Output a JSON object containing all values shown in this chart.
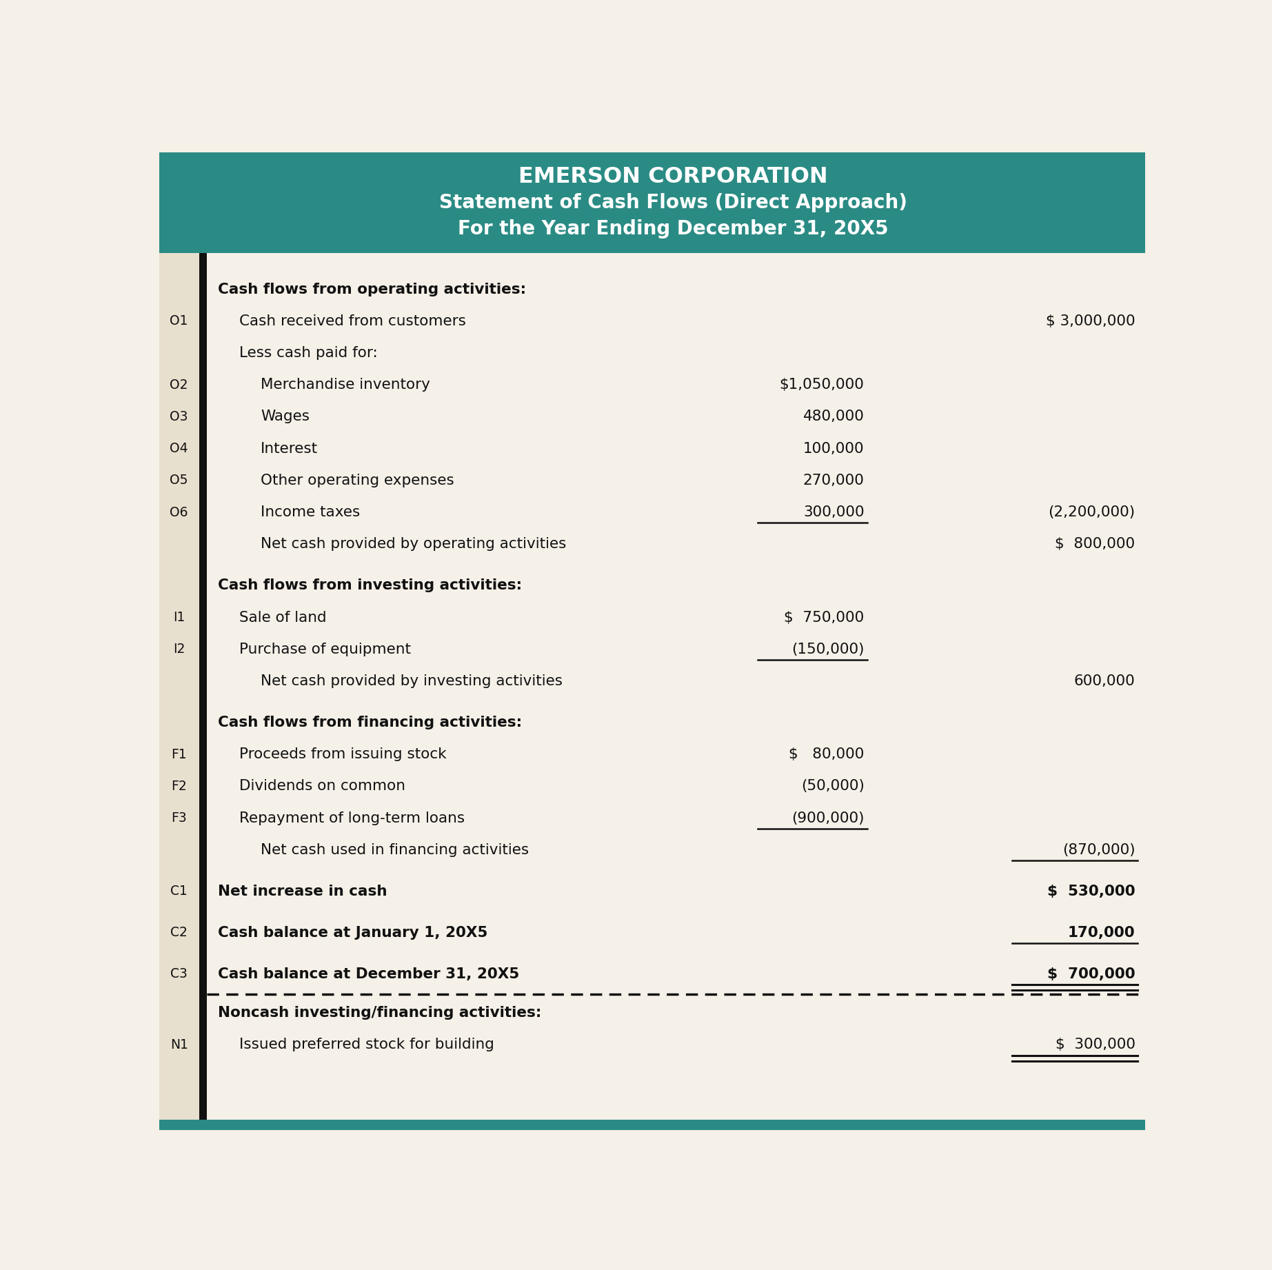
{
  "title1": "EMERSON CORPORATION",
  "title2": "Statement of Cash Flows (Direct Approach)",
  "title3": "For the Year Ending December 31, 20X5",
  "header_bg": "#2A8B84",
  "header_text_color": "#FFFFFF",
  "body_bg": "#F5F0E8",
  "left_sidebar_bg": "#E8E0CE",
  "black_bar_color": "#111111",
  "rows": [
    {
      "label": "Cash flows from operating activities:",
      "indent": 0,
      "col1": "",
      "col2": "",
      "bold": true,
      "underline_col1": false,
      "underline_col2": false,
      "double_underline": false
    },
    {
      "label": "Cash received from customers",
      "indent": 1,
      "col1": "",
      "col2": "$ 3,000,000",
      "bold": false,
      "underline_col1": false,
      "underline_col2": false,
      "double_underline": false,
      "ref": "O1"
    },
    {
      "label": "Less cash paid for:",
      "indent": 1,
      "col1": "",
      "col2": "",
      "bold": false,
      "underline_col1": false,
      "underline_col2": false,
      "double_underline": false
    },
    {
      "label": "Merchandise inventory",
      "indent": 2,
      "col1": "$1,050,000",
      "col2": "",
      "bold": false,
      "underline_col1": false,
      "underline_col2": false,
      "double_underline": false,
      "ref": "O2"
    },
    {
      "label": "Wages",
      "indent": 2,
      "col1": "480,000",
      "col2": "",
      "bold": false,
      "underline_col1": false,
      "underline_col2": false,
      "double_underline": false,
      "ref": "O3"
    },
    {
      "label": "Interest",
      "indent": 2,
      "col1": "100,000",
      "col2": "",
      "bold": false,
      "underline_col1": false,
      "underline_col2": false,
      "double_underline": false,
      "ref": "O4"
    },
    {
      "label": "Other operating expenses",
      "indent": 2,
      "col1": "270,000",
      "col2": "",
      "bold": false,
      "underline_col1": false,
      "underline_col2": false,
      "double_underline": false,
      "ref": "O5"
    },
    {
      "label": "Income taxes",
      "indent": 2,
      "col1": "300,000",
      "col2": "(2,200,000)",
      "bold": false,
      "underline_col1": true,
      "underline_col2": false,
      "double_underline": false,
      "ref": "O6"
    },
    {
      "label": "Net cash provided by operating activities",
      "indent": 2,
      "col1": "",
      "col2": "$  800,000",
      "bold": false,
      "underline_col1": false,
      "underline_col2": false,
      "double_underline": false
    },
    {
      "spacer": true
    },
    {
      "label": "Cash flows from investing activities:",
      "indent": 0,
      "col1": "",
      "col2": "",
      "bold": true,
      "underline_col1": false,
      "underline_col2": false,
      "double_underline": false
    },
    {
      "label": "Sale of land",
      "indent": 1,
      "col1": "$  750,000",
      "col2": "",
      "bold": false,
      "underline_col1": false,
      "underline_col2": false,
      "double_underline": false,
      "ref": "I1"
    },
    {
      "label": "Purchase of equipment",
      "indent": 1,
      "col1": "(150,000)",
      "col2": "",
      "bold": false,
      "underline_col1": true,
      "underline_col2": false,
      "double_underline": false,
      "ref": "I2"
    },
    {
      "label": "Net cash provided by investing activities",
      "indent": 2,
      "col1": "",
      "col2": "600,000",
      "bold": false,
      "underline_col1": false,
      "underline_col2": false,
      "double_underline": false
    },
    {
      "spacer": true
    },
    {
      "label": "Cash flows from financing activities:",
      "indent": 0,
      "col1": "",
      "col2": "",
      "bold": true,
      "underline_col1": false,
      "underline_col2": false,
      "double_underline": false
    },
    {
      "label": "Proceeds from issuing stock",
      "indent": 1,
      "col1": "$   80,000",
      "col2": "",
      "bold": false,
      "underline_col1": false,
      "underline_col2": false,
      "double_underline": false,
      "ref": "F1"
    },
    {
      "label": "Dividends on common",
      "indent": 1,
      "col1": "(50,000)",
      "col2": "",
      "bold": false,
      "underline_col1": false,
      "underline_col2": false,
      "double_underline": false,
      "ref": "F2"
    },
    {
      "label": "Repayment of long-term loans",
      "indent": 1,
      "col1": "(900,000)",
      "col2": "",
      "bold": false,
      "underline_col1": true,
      "underline_col2": false,
      "double_underline": false,
      "ref": "F3"
    },
    {
      "label": "Net cash used in financing activities",
      "indent": 2,
      "col1": "",
      "col2": "(870,000)",
      "bold": false,
      "underline_col1": false,
      "underline_col2": true,
      "double_underline": false
    },
    {
      "spacer": true
    },
    {
      "label": "Net increase in cash",
      "indent": 0,
      "col1": "",
      "col2": "$  530,000",
      "bold": true,
      "underline_col1": false,
      "underline_col2": false,
      "double_underline": false,
      "ref": "C1"
    },
    {
      "spacer": true
    },
    {
      "label": "Cash balance at January 1, 20X5",
      "indent": 0,
      "col1": "",
      "col2": "170,000",
      "bold": true,
      "underline_col1": false,
      "underline_col2": true,
      "double_underline": false,
      "ref": "C2"
    },
    {
      "spacer": true
    },
    {
      "label": "Cash balance at December 31, 20X5",
      "indent": 0,
      "col1": "",
      "col2": "$  700,000",
      "bold": true,
      "underline_col1": false,
      "underline_col2": false,
      "double_underline": true,
      "ref": "C3"
    }
  ],
  "noncash_rows": [
    {
      "label": "Noncash investing/financing activities:",
      "indent": 0,
      "col1": "",
      "col2": "",
      "bold": true,
      "underline_col1": false,
      "underline_col2": false,
      "double_underline": false
    },
    {
      "label": "Issued preferred stock for building",
      "indent": 1,
      "col1": "",
      "col2": "$  300,000",
      "bold": false,
      "underline_col1": false,
      "underline_col2": false,
      "double_underline": true,
      "ref": "N1"
    }
  ]
}
